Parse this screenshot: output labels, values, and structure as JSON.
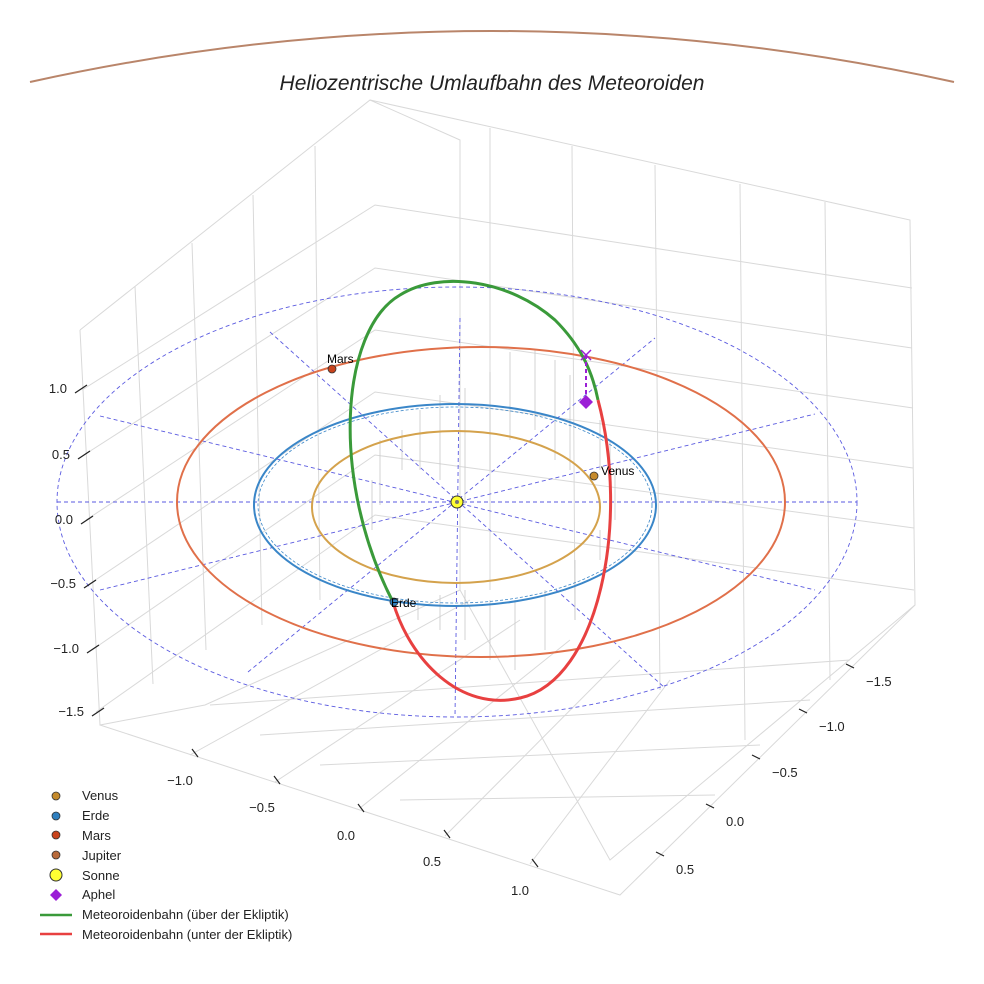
{
  "chart_data": {
    "type": "3d-orbit",
    "title": "Heliozentrische Umlaufbahn des Meteoroiden",
    "axes": {
      "x_ticks": [
        -1.0,
        -0.5,
        0.0,
        0.5,
        1.0
      ],
      "y_ticks": [
        -1.5,
        -1.0,
        -0.5,
        0.0,
        0.5
      ],
      "z_ticks": [
        -1.5,
        -1.0,
        -0.5,
        0.0,
        0.5,
        1.0
      ],
      "x_tick_labels": [
        "−1.0",
        "−0.5",
        "0.0",
        "0.5",
        "1.0"
      ],
      "y_tick_labels": [
        "−1.5",
        "−1.0",
        "−0.5",
        "0.0",
        "0.5"
      ],
      "z_tick_labels": [
        "−1.5",
        "−1.0",
        "−0.5",
        "0.0",
        "0.5",
        "1.0"
      ]
    },
    "planets": [
      {
        "name": "Venus",
        "orbit_radius_au": 0.72,
        "color": "#d4a24c",
        "marker_color": "#c58a2b",
        "label": "Venus"
      },
      {
        "name": "Erde",
        "orbit_radius_au": 1.0,
        "color": "#3a86c8",
        "marker_color": "#2f7fbf",
        "label": "Erde"
      },
      {
        "name": "Mars",
        "orbit_radius_au": 1.52,
        "color": "#e0704a",
        "marker_color": "#c8431c",
        "label": "Mars"
      },
      {
        "name": "Jupiter",
        "orbit_radius_au": 5.2,
        "color": "#b9856a",
        "marker_color": "#b86a3a"
      }
    ],
    "sun": {
      "name": "Sonne",
      "color": "#ffff33"
    },
    "aphel": {
      "name": "Aphel",
      "color": "#9b1fd6"
    },
    "ecliptic_grid_radius_au": 2.0,
    "meteoroid_orbit": [
      {
        "name": "Meteoroidenbahn (über der Ekliptik)",
        "color": "#3a9a3a"
      },
      {
        "name": "Meteoroidenbahn (unter der Ekliptik)",
        "color": "#e84040"
      }
    ]
  },
  "legend": [
    {
      "label": "Venus",
      "kind": "dot",
      "color": "#c58a2b"
    },
    {
      "label": "Erde",
      "kind": "dot",
      "color": "#2f7fbf"
    },
    {
      "label": "Mars",
      "kind": "dot",
      "color": "#c8431c"
    },
    {
      "label": "Jupiter",
      "kind": "dot",
      "color": "#b86a3a"
    },
    {
      "label": "Sonne",
      "kind": "bigdot",
      "color": "#ffff33"
    },
    {
      "label": "Aphel",
      "kind": "diamond",
      "color": "#9b1fd6"
    },
    {
      "label": "Meteoroidenbahn (über der Ekliptik)",
      "kind": "line",
      "color": "#3a9a3a"
    },
    {
      "label": "Meteoroidenbahn (unter der Ekliptik)",
      "kind": "line",
      "color": "#e84040"
    }
  ]
}
